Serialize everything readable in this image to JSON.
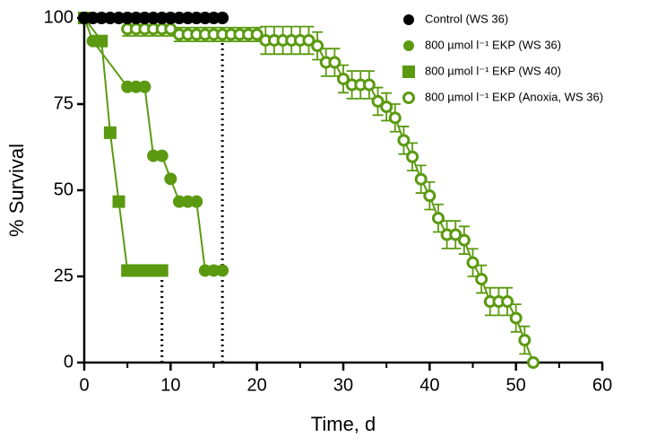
{
  "chart_data": {
    "type": "line",
    "xlabel": "Time, d",
    "ylabel": "% Survival",
    "xlim": [
      0,
      60
    ],
    "ylim": [
      0,
      100
    ],
    "xticks": [
      0,
      10,
      20,
      30,
      40,
      50,
      60
    ],
    "xticks_minor": [
      5,
      15,
      25,
      35,
      45,
      55
    ],
    "yticks": [
      0,
      25,
      50,
      75,
      100
    ],
    "series": [
      {
        "name": "Control (WS 36)",
        "color": "#000000",
        "marker": "circle",
        "x": [
          0,
          1,
          2,
          3,
          4,
          5,
          6,
          7,
          8,
          9,
          10,
          11,
          12,
          13,
          14,
          15,
          16
        ],
        "values": [
          100,
          100,
          100,
          100,
          100,
          100,
          100,
          100,
          100,
          100,
          100,
          100,
          100,
          100,
          100,
          100,
          100
        ]
      },
      {
        "name": "800 µmol l⁻¹ EKP (WS 36)",
        "color": "#5b9a10",
        "marker": "circle",
        "x": [
          0,
          1,
          5,
          6,
          7,
          8,
          9,
          10,
          11,
          12,
          13,
          14,
          15,
          16
        ],
        "values": [
          100,
          93.3,
          80,
          80,
          80,
          60,
          60,
          53.3,
          46.7,
          46.7,
          46.7,
          26.7,
          26.7,
          26.7
        ]
      },
      {
        "name": "800 µmol l⁻¹ EKP (WS 40)",
        "color": "#5b9a10",
        "marker": "square",
        "x": [
          0,
          2,
          3,
          4,
          5,
          6,
          7,
          8,
          9
        ],
        "values": [
          100,
          93.3,
          66.7,
          46.7,
          26.7,
          26.7,
          26.7,
          26.7,
          26.7
        ]
      },
      {
        "name": "800 µmol l⁻¹ EKP (Anoxia, WS 36)",
        "color": "#5b9a10",
        "marker": "open-circle",
        "x": [
          5,
          6,
          7,
          8,
          9,
          10,
          11,
          12,
          13,
          14,
          15,
          16,
          17,
          18,
          19,
          20,
          21,
          22,
          23,
          24,
          25,
          26,
          27,
          28,
          29,
          30,
          31,
          32,
          33,
          34,
          35,
          36,
          37,
          38,
          39,
          40,
          41,
          42,
          43,
          44,
          45,
          46,
          47,
          48,
          49,
          50,
          51,
          52
        ],
        "values": [
          96.8,
          96.8,
          96.8,
          96.8,
          96.8,
          96.8,
          95.2,
          95.2,
          95.2,
          95.2,
          95.2,
          95.2,
          95.2,
          95.2,
          95.2,
          95.2,
          93.5,
          93.5,
          93.5,
          93.5,
          93.5,
          93.5,
          91.9,
          87.1,
          87.1,
          82.3,
          80.6,
          80.6,
          80.6,
          75.8,
          74.2,
          71,
          64.5,
          59.7,
          53.2,
          48.4,
          41.9,
          37.1,
          37.1,
          35.5,
          29,
          24.2,
          17.7,
          17.7,
          17.7,
          12.9,
          6.5,
          0
        ],
        "errors": [
          2,
          2,
          2,
          2,
          2,
          2,
          2,
          2,
          2,
          2,
          2,
          2,
          2,
          2,
          2,
          2,
          4,
          4,
          4,
          4,
          4,
          4,
          4,
          4,
          4,
          4,
          4,
          4,
          4,
          4,
          4,
          4,
          4,
          4,
          4,
          4,
          4,
          4,
          4,
          4,
          4,
          4,
          4,
          4,
          4,
          4,
          4,
          0
        ]
      }
    ],
    "reference_lines": [
      {
        "x": 9,
        "y": 26.7
      },
      {
        "x": 16,
        "y": 97
      }
    ]
  }
}
